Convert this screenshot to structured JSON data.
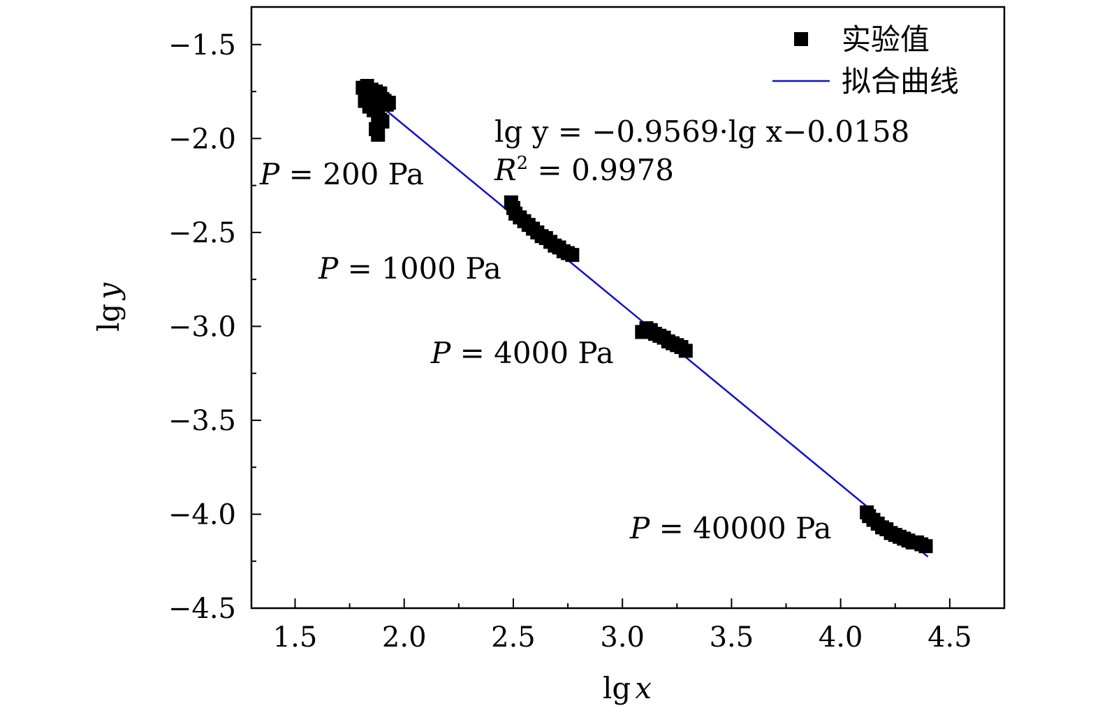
{
  "chart_data": {
    "type": "scatter",
    "xlabel": "lg x",
    "ylabel": "lg y",
    "xlim": [
      1.3,
      4.75
    ],
    "ylim": [
      -4.5,
      -1.3
    ],
    "xticks": [
      1.5,
      2.0,
      2.5,
      3.0,
      3.5,
      4.0,
      4.5
    ],
    "xtick_labels": [
      "1.5",
      "2.0",
      "2.5",
      "3.0",
      "3.5",
      "4.0",
      "4.5"
    ],
    "yticks": [
      -1.5,
      -2.0,
      -2.5,
      -3.0,
      -3.5,
      -4.0,
      -4.5
    ],
    "ytick_labels": [
      "−1.5",
      "−2.0",
      "−2.5",
      "−3.0",
      "−3.5",
      "−4.0",
      "−4.5"
    ],
    "grid": false,
    "legend_position": "top-right",
    "series": [
      {
        "name": "实验值",
        "type": "scatter",
        "color": "#000000",
        "marker": "square",
        "points": [
          [
            1.81,
            -1.73
          ],
          [
            1.82,
            -1.75
          ],
          [
            1.83,
            -1.72
          ],
          [
            1.84,
            -1.76
          ],
          [
            1.85,
            -1.74
          ],
          [
            1.86,
            -1.77
          ],
          [
            1.87,
            -1.75
          ],
          [
            1.88,
            -1.78
          ],
          [
            1.89,
            -1.76
          ],
          [
            1.9,
            -1.79
          ],
          [
            1.91,
            -1.8
          ],
          [
            1.92,
            -1.82
          ],
          [
            1.93,
            -1.81
          ],
          [
            1.82,
            -1.8
          ],
          [
            1.84,
            -1.83
          ],
          [
            1.86,
            -1.85
          ],
          [
            1.88,
            -1.88
          ],
          [
            1.9,
            -1.91
          ],
          [
            1.87,
            -1.95
          ],
          [
            1.88,
            -1.98
          ],
          [
            1.89,
            -1.9
          ],
          [
            2.49,
            -2.34
          ],
          [
            2.5,
            -2.37
          ],
          [
            2.51,
            -2.4
          ],
          [
            2.53,
            -2.42
          ],
          [
            2.55,
            -2.44
          ],
          [
            2.57,
            -2.46
          ],
          [
            2.59,
            -2.48
          ],
          [
            2.61,
            -2.5
          ],
          [
            2.63,
            -2.52
          ],
          [
            2.65,
            -2.53
          ],
          [
            2.67,
            -2.55
          ],
          [
            2.69,
            -2.57
          ],
          [
            2.71,
            -2.58
          ],
          [
            2.73,
            -2.6
          ],
          [
            2.75,
            -2.61
          ],
          [
            2.77,
            -2.62
          ],
          [
            3.09,
            -3.03
          ],
          [
            3.11,
            -3.01
          ],
          [
            3.13,
            -3.02
          ],
          [
            3.15,
            -3.04
          ],
          [
            3.17,
            -3.05
          ],
          [
            3.19,
            -3.06
          ],
          [
            3.21,
            -3.08
          ],
          [
            3.23,
            -3.09
          ],
          [
            3.25,
            -3.1
          ],
          [
            3.27,
            -3.11
          ],
          [
            3.29,
            -3.13
          ],
          [
            4.12,
            -3.99
          ],
          [
            4.13,
            -4.01
          ],
          [
            4.15,
            -4.03
          ],
          [
            4.17,
            -4.05
          ],
          [
            4.19,
            -4.07
          ],
          [
            4.21,
            -4.08
          ],
          [
            4.23,
            -4.1
          ],
          [
            4.25,
            -4.11
          ],
          [
            4.27,
            -4.12
          ],
          [
            4.29,
            -4.13
          ],
          [
            4.31,
            -4.14
          ],
          [
            4.33,
            -4.15
          ],
          [
            4.35,
            -4.15
          ],
          [
            4.37,
            -4.16
          ],
          [
            4.39,
            -4.17
          ]
        ]
      },
      {
        "name": "拟合曲线",
        "type": "line",
        "color": "#1010cc",
        "slope": -0.9569,
        "intercept": -0.0158,
        "x_range": [
          1.81,
          4.4
        ]
      }
    ],
    "annotations": {
      "equation": "lg y = −0.9569·lg x−0.0158",
      "r2_symbol": "R",
      "r2_exponent": "2",
      "r2_value": " = 0.9978",
      "pressures": [
        {
          "symbol": "P",
          "text": " = 200  Pa"
        },
        {
          "symbol": "P",
          "text": " = 1000  Pa"
        },
        {
          "symbol": "P",
          "text": " = 4000  Pa"
        },
        {
          "symbol": "P",
          "text": " = 40000  Pa"
        }
      ]
    }
  }
}
